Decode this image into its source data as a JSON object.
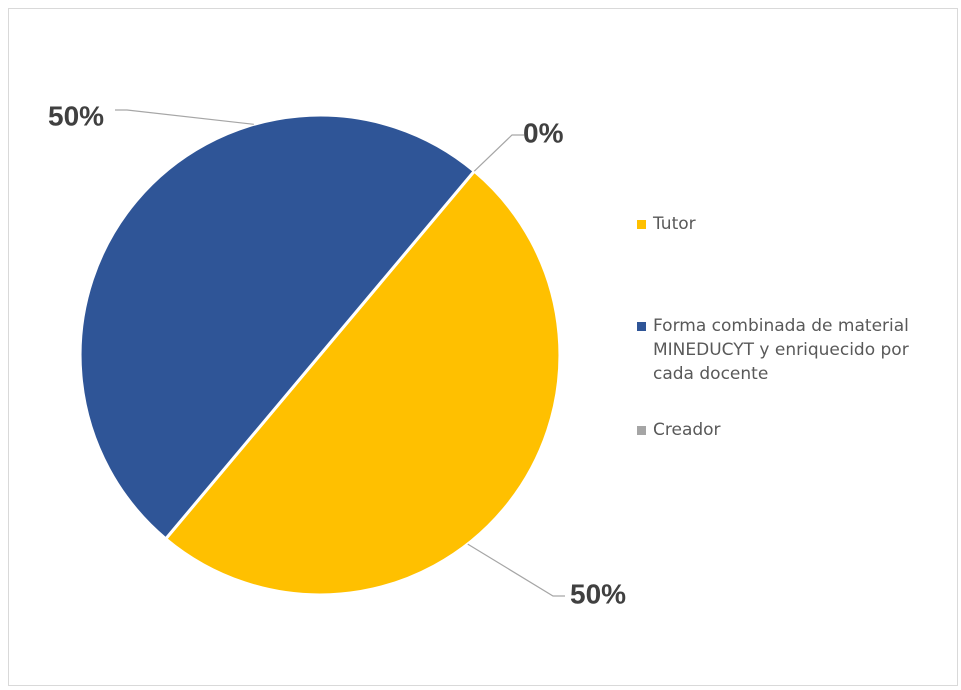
{
  "chart_data": {
    "type": "pie",
    "categories": [
      "Tutor",
      "Forma combinada de material MINEDUCYT y enriquecido por cada docente",
      "Creador"
    ],
    "values": [
      50,
      50,
      0
    ],
    "data_labels": [
      "50%",
      "50%",
      "0%"
    ],
    "colors": [
      "#FFC000",
      "#2F5597",
      "#A5A5A5"
    ],
    "legend_position": "right",
    "title": ""
  }
}
